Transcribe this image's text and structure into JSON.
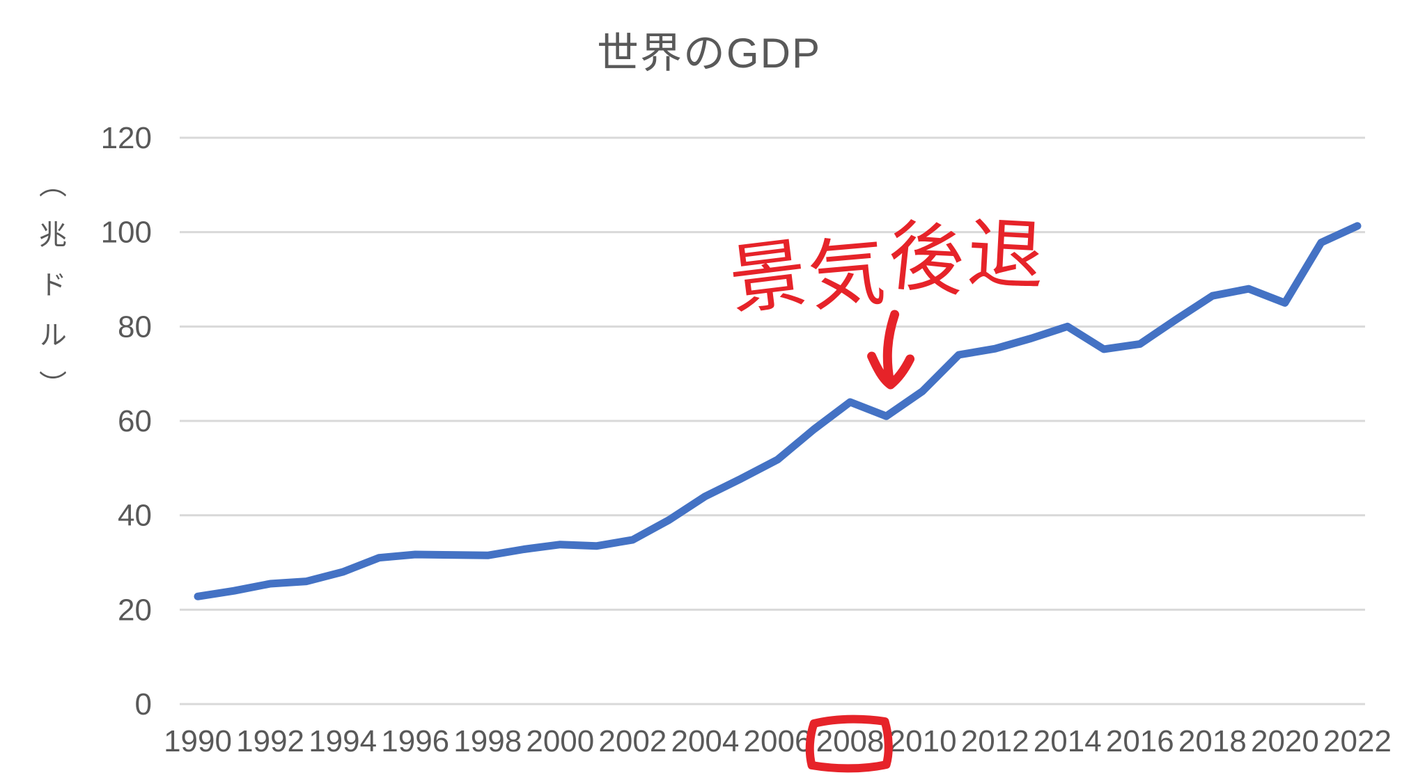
{
  "title": "世界のGDP",
  "colors": {
    "line": "#4472c4",
    "grid": "#d9d9d9",
    "axis_text": "#595959",
    "annotation_red": "#e62329",
    "background": "#ffffff"
  },
  "chart_data": {
    "type": "line",
    "title": "世界のGDP",
    "xlabel": "",
    "ylabel": "（兆ドル）",
    "ylim": [
      0,
      120
    ],
    "yticks": [
      0,
      20,
      40,
      60,
      80,
      100,
      120
    ],
    "xticks": [
      1990,
      1992,
      1994,
      1996,
      1998,
      2000,
      2002,
      2004,
      2006,
      2008,
      2010,
      2012,
      2014,
      2016,
      2018,
      2020,
      2022
    ],
    "grid": "horizontal",
    "legend": "none",
    "x": [
      1990,
      1991,
      1992,
      1993,
      1994,
      1995,
      1996,
      1997,
      1998,
      1999,
      2000,
      2001,
      2002,
      2003,
      2004,
      2005,
      2006,
      2007,
      2008,
      2009,
      2010,
      2011,
      2012,
      2013,
      2014,
      2015,
      2016,
      2017,
      2018,
      2019,
      2020,
      2021,
      2022
    ],
    "series": [
      {
        "name": "世界のGDP",
        "values": [
          22.8,
          24.0,
          25.5,
          26.0,
          28.0,
          31.0,
          31.7,
          31.6,
          31.5,
          32.8,
          33.8,
          33.5,
          34.8,
          39.0,
          44.0,
          47.8,
          51.8,
          58.2,
          64.0,
          61.0,
          66.3,
          74.0,
          75.3,
          77.5,
          80.0,
          75.2,
          76.3,
          81.5,
          86.5,
          88.0,
          85.0,
          97.8,
          101.3
        ]
      }
    ]
  },
  "annotations": {
    "recession_label": "景気後退",
    "arrow_target_year": 2009,
    "boxed_xtick": "2008"
  }
}
